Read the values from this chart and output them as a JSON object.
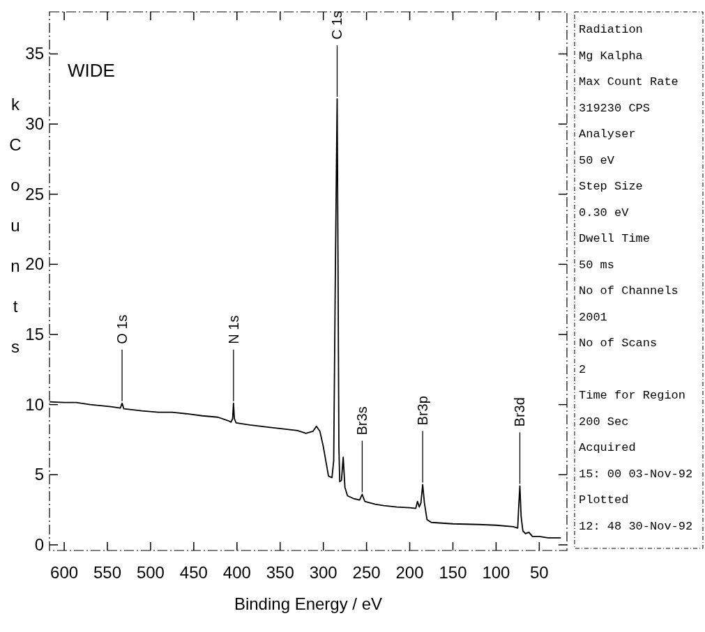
{
  "chart_data": [
    {
      "type": "line",
      "title": "WIDE",
      "xlabel": "Binding Energy / eV",
      "ylabel": "k Counts",
      "xlim": [
        617,
        18
      ],
      "ylim": [
        -0.4,
        38
      ],
      "xticks": [
        600,
        550,
        500,
        450,
        400,
        350,
        300,
        250,
        200,
        150,
        100,
        50
      ],
      "yticks": [
        0,
        5,
        10,
        15,
        20,
        25,
        30,
        35
      ],
      "grid": false,
      "marker": "none",
      "line_style": "solid",
      "annotations": [
        {
          "text": "O 1s",
          "x": 533,
          "y": 10.1
        },
        {
          "text": "N 1s",
          "x": 404,
          "y": 10.1
        },
        {
          "text": "C 1s",
          "x": 284,
          "y": 31.8
        },
        {
          "text": "Br3s",
          "x": 255,
          "y": 3.6
        },
        {
          "text": "Br3p",
          "x": 185,
          "y": 4.3
        },
        {
          "text": "Br3d",
          "x": 72.5,
          "y": 4.2
        }
      ],
      "series": [
        {
          "color": "#000000",
          "x": [
            617,
            600,
            586,
            570,
            546,
            535,
            533,
            531,
            510,
            491,
            475,
            459,
            440,
            422,
            410,
            407,
            405,
            404,
            403,
            401,
            385,
            365,
            344,
            330,
            320,
            312,
            308,
            304,
            300,
            294,
            290,
            288,
            286,
            284,
            283,
            282,
            281,
            279,
            277,
            275,
            272,
            265,
            258,
            255,
            252,
            240,
            230,
            215,
            200,
            193,
            191,
            189,
            187,
            185,
            183,
            180,
            175,
            150,
            120,
            100,
            80,
            75,
            74,
            72.5,
            71,
            69,
            66,
            62,
            58,
            50,
            40,
            30,
            25
          ],
          "values": [
            10.2,
            10.15,
            10.15,
            10.0,
            9.85,
            9.75,
            10.1,
            9.7,
            9.55,
            9.45,
            9.45,
            9.35,
            9.2,
            9.1,
            8.85,
            8.75,
            9.0,
            10.1,
            9.0,
            8.7,
            8.55,
            8.4,
            8.25,
            8.15,
            7.95,
            8.1,
            8.45,
            8.1,
            7.0,
            4.9,
            4.8,
            6.0,
            20,
            31.8,
            20,
            7,
            4.5,
            4.6,
            6.25,
            4.1,
            3.5,
            3.3,
            3.2,
            3.6,
            3.1,
            2.9,
            2.8,
            2.7,
            2.65,
            2.6,
            3.1,
            2.7,
            3.0,
            4.3,
            3.0,
            1.8,
            1.6,
            1.5,
            1.45,
            1.4,
            1.3,
            1.2,
            2.5,
            4.2,
            2.0,
            1.0,
            0.8,
            0.9,
            0.6,
            0.6,
            0.5,
            0.5,
            0.5
          ]
        }
      ]
    },
    {
      "type": "other",
      "annotations": [
        "Radiation",
        "Mg Kalpha",
        "Max Count Rate",
        "319230 CPS",
        "Analyser",
        "50 eV",
        "Step Size",
        "0.30 eV",
        "Dwell Time",
        "50 ms",
        "No of Channels",
        "2001",
        "No of Scans",
        "2",
        "Time for Region",
        "200 Sec",
        "Acquired",
        "15: 00 03-Nov-92",
        "Plotted",
        "12: 48 30-Nov-92"
      ]
    }
  ]
}
